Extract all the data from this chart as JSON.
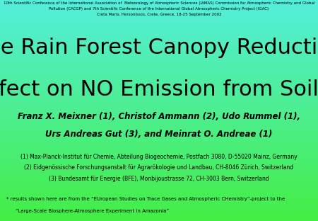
{
  "bg_top_color": "#55eedd",
  "bg_bottom_color": "#44ee44",
  "header_line1": "10th Scientific Conference of the International Association of  Meteorology of Atmospheric Sciences (IAMAS) Commission for Atmospheric Chemistry and Global",
  "header_line2": "Pollution (CACGP) and 7th Scientific Conference of the International Global Atmospheric Chemistry Project (IGAC)",
  "header_line3": "Creta Maris, Hersonissos, Crete, Greece, 18-25 September 2002",
  "title_line1": "The Rain Forest Canopy Reduction",
  "title_line2": "Effect on NO Emission from Soils*",
  "authors_line1": "Franz X. Meixner (1), Christof Ammann (2), Udo Rummel (1),",
  "authors_line2": "Urs Andreas Gut (3), and Meinrat O. Andreae (1)",
  "affil1": "(1) Max-Planck-Institut für Chemie, Abteilung Biogeochemie, Postfach 3080, D-55020 Mainz, Germany",
  "affil2": "(2) Eidgenössische Forschungsanstalt für Agrarökologie und Landbau, CH-8046 Zürich, Switzerland",
  "affil3": "(3) Bundesamt für Energie (BFE), Monbijoustrasse 72, CH-3003 Bern, Switzerland",
  "footer_line1": "* results shown here are from the “EUropean Studies on Trace Gases and Atmospheric CHemistry”-project to the",
  "footer_line2": "“Large-Scale Biosphere-Atmosphere Experiment in Amazonia”",
  "title_fontsize": 22,
  "author_fontsize": 8.5,
  "affil_fontsize": 5.5,
  "header_fontsize": 4.0,
  "footer_fontsize": 5.0
}
